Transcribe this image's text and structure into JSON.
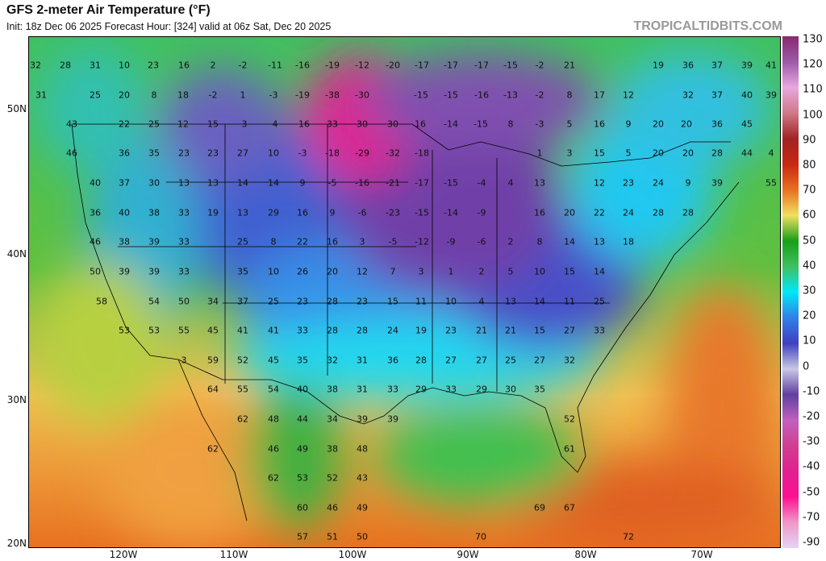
{
  "header": {
    "title": "GFS 2-meter Air Temperature (°F)",
    "subtitle": "Init: 18z Dec 06 2025   Forecast Hour: [324]   valid at 06z Sat, Dec 20 2025",
    "brand": "TROPICALTIDBITS.COM"
  },
  "map": {
    "lat_labels": [
      "50N",
      "40N",
      "30N",
      "20N"
    ],
    "lon_labels": [
      "120W",
      "110W",
      "100W",
      "90W",
      "80W",
      "70W"
    ],
    "station_values": [
      "32",
      "28",
      "31",
      "10",
      "23",
      "16",
      "2",
      "-2",
      "-11",
      "-16",
      "-19",
      "-12",
      "-20",
      "-17",
      "-17",
      "-17",
      "-15",
      "-2",
      "21",
      "19",
      "36",
      "37",
      "39",
      "41",
      "31",
      "25",
      "20",
      "8",
      "18",
      "-2",
      "1",
      "-3",
      "-19",
      "-38",
      "-30",
      "-15",
      "-15",
      "-16",
      "-13",
      "-2",
      "8",
      "17",
      "12",
      "32",
      "37",
      "40",
      "39",
      "43",
      "22",
      "25",
      "12",
      "15",
      "3",
      "4",
      "16",
      "33",
      "30",
      "30",
      "16",
      "-14",
      "-15",
      "8",
      "-3",
      "5",
      "16",
      "9",
      "20",
      "20",
      "36",
      "45",
      "46",
      "36",
      "35",
      "23",
      "23",
      "27",
      "10",
      "-3",
      "-18",
      "-29",
      "-32",
      "-18",
      "1",
      "3",
      "15",
      "5",
      "20",
      "20",
      "28",
      "44",
      "4",
      "40",
      "37",
      "30",
      "13",
      "13",
      "14",
      "14",
      "9",
      "-5",
      "-16",
      "-21",
      "-17",
      "-15",
      "-4",
      "4",
      "13",
      "12",
      "23",
      "24",
      "9",
      "39",
      "55",
      "36",
      "40",
      "38",
      "33",
      "19",
      "13",
      "29",
      "16",
      "9",
      "-6",
      "-23",
      "-15",
      "-14",
      "-9",
      "16",
      "20",
      "22",
      "24",
      "28",
      "28",
      "46",
      "38",
      "39",
      "33",
      "25",
      "8",
      "22",
      "16",
      "3",
      "-5",
      "-12",
      "-9",
      "-6",
      "2",
      "8",
      "14",
      "13",
      "18",
      "50",
      "39",
      "39",
      "33",
      "35",
      "10",
      "26",
      "20",
      "12",
      "7",
      "3",
      "1",
      "2",
      "5",
      "10",
      "15",
      "14",
      "58",
      "54",
      "50",
      "34",
      "37",
      "25",
      "23",
      "28",
      "23",
      "15",
      "11",
      "10",
      "4",
      "13",
      "14",
      "11",
      "25",
      "53",
      "53",
      "55",
      "45",
      "41",
      "41",
      "33",
      "28",
      "28",
      "24",
      "19",
      "23",
      "21",
      "21",
      "15",
      "27",
      "33",
      "3",
      "59",
      "52",
      "45",
      "35",
      "32",
      "31",
      "36",
      "28",
      "27",
      "27",
      "25",
      "27",
      "32",
      "64",
      "55",
      "54",
      "40",
      "38",
      "31",
      "33",
      "29",
      "33",
      "29",
      "30",
      "35",
      "62",
      "48",
      "44",
      "34",
      "39",
      "39",
      "52",
      "62",
      "46",
      "49",
      "38",
      "48",
      "61",
      "62",
      "53",
      "52",
      "43",
      "60",
      "46",
      "49",
      "69",
      "67",
      "57",
      "51",
      "50",
      "70",
      "72"
    ]
  },
  "colorbar": {
    "labels": [
      "130",
      "120",
      "110",
      "100",
      "90",
      "80",
      "70",
      "60",
      "50",
      "40",
      "30",
      "20",
      "10",
      "0",
      "-10",
      "-20",
      "-30",
      "-40",
      "-50",
      "-70",
      "-90"
    ],
    "colors": [
      "#8a2a70",
      "#9c5aa8",
      "#e8a8e0",
      "#d07888",
      "#a02424",
      "#c82812",
      "#e87020",
      "#f0e060",
      "#18a018",
      "#40c060",
      "#00e8f8",
      "#3080e8",
      "#4040c0",
      "#c8c8e4",
      "#6040a0",
      "#c060c0",
      "#d04090",
      "#e02090",
      "#ff1090",
      "#f098c8",
      "#e4d4f4"
    ]
  }
}
